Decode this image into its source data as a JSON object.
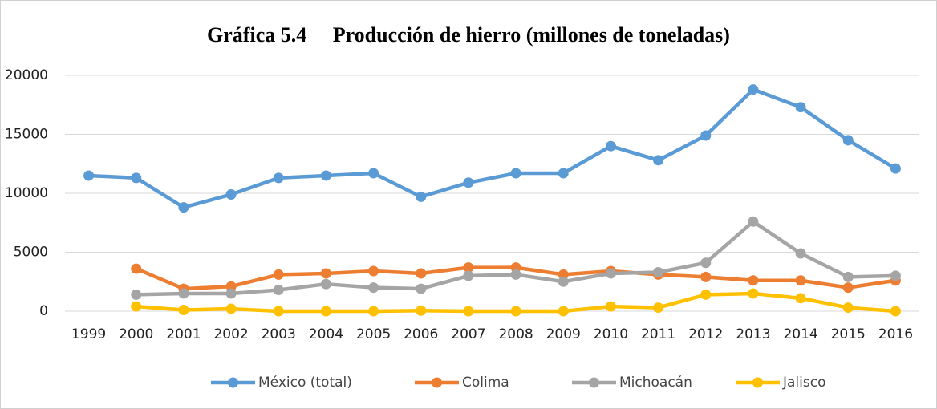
{
  "chart_data": {
    "type": "line",
    "title": "Gráfica 5.4     Producción de hierro (millones de toneladas)",
    "categories": [
      "1999",
      "2000",
      "2001",
      "2002",
      "2003",
      "2004",
      "2005",
      "2006",
      "2007",
      "2008",
      "2009",
      "2010",
      "2011",
      "2012",
      "2013",
      "2014",
      "2015",
      "2016"
    ],
    "series": [
      {
        "name": "México (total)",
        "color": "#5b9bd5",
        "values": [
          11500,
          11300,
          8800,
          9900,
          11300,
          11500,
          11700,
          9700,
          10900,
          11700,
          11700,
          14000,
          12800,
          14900,
          18800,
          17300,
          14500,
          12100
        ]
      },
      {
        "name": "Colima",
        "color": "#ed7d31",
        "values": [
          null,
          3600,
          1900,
          2100,
          3100,
          3200,
          3400,
          3200,
          3700,
          3700,
          3100,
          3400,
          3100,
          2900,
          2600,
          2600,
          2000,
          2600
        ]
      },
      {
        "name": "Michoacán",
        "color": "#a5a5a5",
        "values": [
          null,
          1400,
          1500,
          1500,
          1800,
          2300,
          2000,
          1900,
          3000,
          3100,
          2500,
          3200,
          3300,
          4100,
          7600,
          4900,
          2900,
          3000
        ]
      },
      {
        "name": "Jalisco",
        "color": "#ffc000",
        "values": [
          null,
          400,
          100,
          200,
          0,
          0,
          0,
          50,
          0,
          0,
          0,
          400,
          300,
          1400,
          1500,
          1100,
          300,
          0
        ]
      }
    ],
    "ylim": [
      0,
      20000
    ],
    "yticks": [
      0,
      5000,
      10000,
      15000,
      20000
    ],
    "grid": true,
    "legend": "bottom"
  }
}
